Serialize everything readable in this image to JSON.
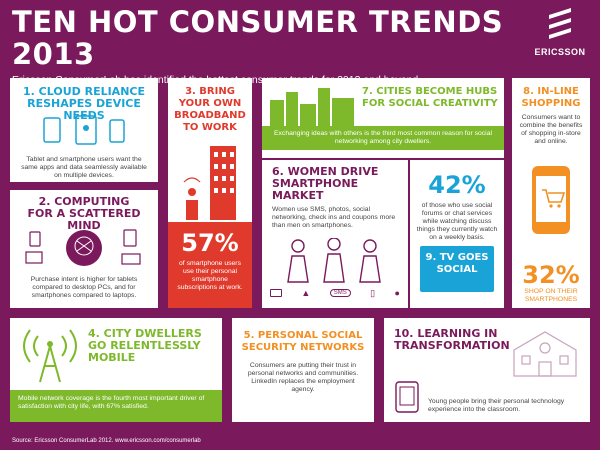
{
  "header": {
    "title": "TEN HOT CONSUMER TRENDS 2013",
    "subtitle": "Ericsson ConsumerLab has identified the hottest consumer trends for 2013 and beyond",
    "logo_text": "ERICSSON"
  },
  "colors": {
    "background": "#7a1a5c",
    "blue": "#1aa3d6",
    "red": "#e03a2c",
    "green": "#7db92a",
    "orange": "#f29023"
  },
  "trends": {
    "t1": {
      "title": "1. CLOUD RELIANCE RESHAPES DEVICE NEEDS",
      "text": "Tablet and smartphone users want the same apps and data seamlessly available on multiple devices."
    },
    "t2": {
      "title": "2. COMPUTING FOR A SCATTERED MIND",
      "text": "Purchase intent is higher for tablets compared to desktop PCs, and for smartphones compared to laptops."
    },
    "t3": {
      "title": "3. BRING YOUR OWN BROADBAND TO WORK",
      "stat": "57%",
      "text": "of smartphone users use their personal smartphone subscriptions at work."
    },
    "t4": {
      "title": "4. CITY DWELLERS GO RELENTLESSLY MOBILE",
      "text": "Mobile network coverage is the fourth most important driver of satisfaction with city life, with 67% satisfied."
    },
    "t5": {
      "title": "5. PERSONAL SOCIAL SECURITY NETWORKS",
      "text": "Consumers are putting their trust in personal networks and communities. LinkedIn replaces the employment agency."
    },
    "t6": {
      "title": "6. WOMEN DRIVE SMARTPHONE MARKET",
      "text": "Women use SMS, photos, social networking, check ins and coupons more than men on smartphones.",
      "sms_label": "SMS"
    },
    "t7": {
      "title": "7. CITIES BECOME HUBS FOR SOCIAL CREATIVITY",
      "text": "Exchanging ideas with others is the third most common reason for social networking among city dwellers."
    },
    "t8": {
      "title": "8. IN-LINE SHOPPING",
      "text": "Consumers want to combine the benefits of shopping in-store and online.",
      "stat": "32%",
      "stat_text": "SHOP ON THEIR SMARTPHONES"
    },
    "t9": {
      "title": "9. TV GOES SOCIAL",
      "stat": "42%",
      "text": "of those who use social forums or chat services while watching discuss things they currently watch on a weekly basis."
    },
    "t10": {
      "title": "10. LEARNING IN TRANSFORMATION",
      "text": "Young people bring their personal technology experience into the classroom."
    }
  },
  "footer": "Source: Ericsson ConsumerLab 2012. www.ericsson.com/consumerlab"
}
